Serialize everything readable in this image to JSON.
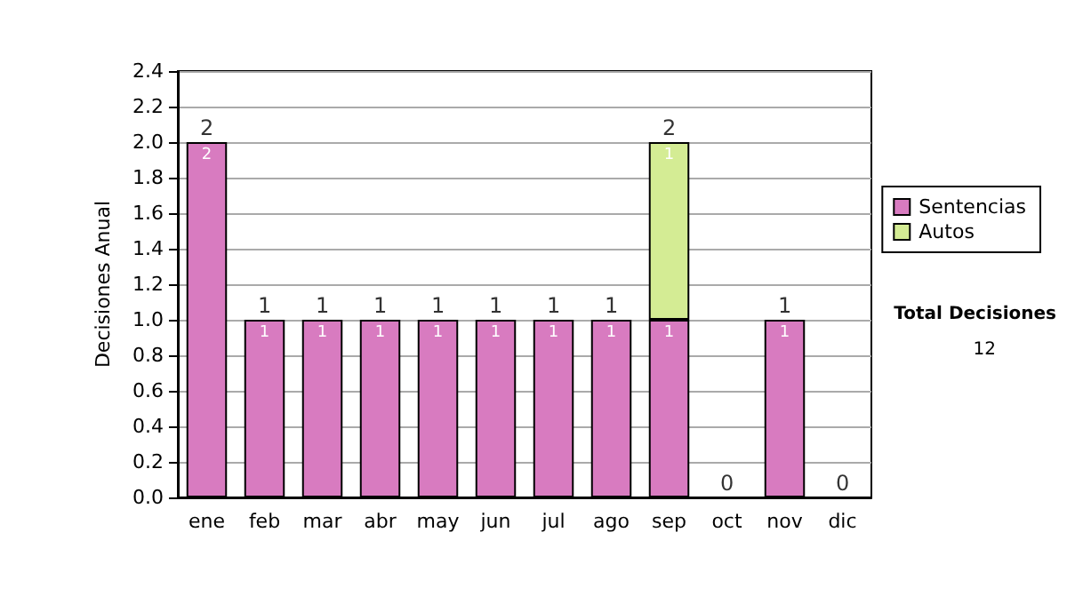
{
  "chart_data": {
    "type": "bar",
    "ylabel": "Decisiones Anual",
    "categories": [
      "ene",
      "feb",
      "mar",
      "abr",
      "may",
      "jun",
      "jul",
      "ago",
      "sep",
      "oct",
      "nov",
      "dic"
    ],
    "stacked": true,
    "series": [
      {
        "name": "Sentencias",
        "color": "#d87bc0",
        "values": [
          2,
          1,
          1,
          1,
          1,
          1,
          1,
          1,
          1,
          0,
          1,
          0
        ],
        "value_labels": [
          "2",
          "1",
          "1",
          "1",
          "1",
          "1",
          "1",
          "1",
          "1",
          null,
          "1",
          null
        ]
      },
      {
        "name": "Autos",
        "color": "#d4ec94",
        "values": [
          0,
          0,
          0,
          0,
          0,
          0,
          0,
          0,
          1,
          0,
          0,
          0
        ],
        "value_labels": [
          null,
          null,
          null,
          null,
          null,
          null,
          null,
          null,
          "1",
          null,
          null,
          null
        ]
      }
    ],
    "totals": [
      "2",
      "1",
      "1",
      "1",
      "1",
      "1",
      "1",
      "1",
      "2",
      "0",
      "1",
      "0"
    ],
    "ylim": [
      0,
      2.4
    ],
    "yticks": [
      {
        "value": 0,
        "label": "0.0"
      },
      {
        "value": 0.2,
        "label": "0.2"
      },
      {
        "value": 0.4,
        "label": "0.4"
      },
      {
        "value": 0.6,
        "label": "0.6"
      },
      {
        "value": 0.8,
        "label": "0.8"
      },
      {
        "value": 1,
        "label": "1.0"
      },
      {
        "value": 1.2,
        "label": "1.2"
      },
      {
        "value": 1.4,
        "label": "1.4"
      },
      {
        "value": 1.6,
        "label": "1.6"
      },
      {
        "value": 1.8,
        "label": "1.8"
      },
      {
        "value": 2,
        "label": "2.0"
      },
      {
        "value": 2.2,
        "label": "2.2"
      },
      {
        "value": 2.4,
        "label": "2.4"
      }
    ],
    "grid": "y",
    "legend": "right",
    "annotations": [
      "Total Decisiones",
      "12"
    ]
  }
}
